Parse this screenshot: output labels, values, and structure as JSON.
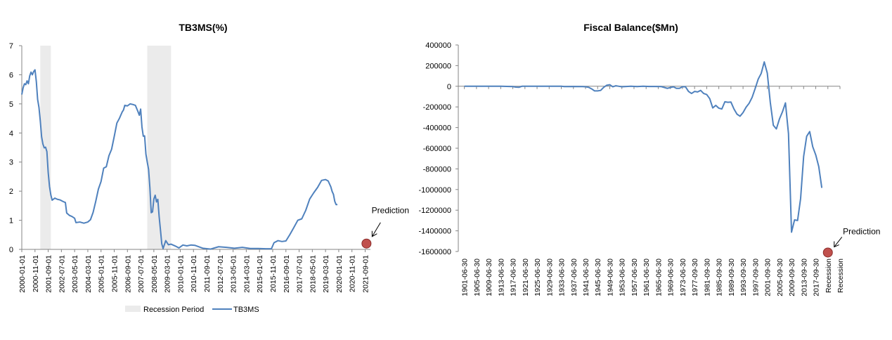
{
  "chart_data": [
    {
      "type": "line",
      "title": "TB3MS(%)",
      "xlabel": "",
      "ylabel": "",
      "ylim": [
        0,
        7
      ],
      "yticks": [
        0,
        1,
        2,
        3,
        4,
        5,
        6,
        7
      ],
      "x_tick_labels": [
        "2000-01-01",
        "2000-11-01",
        "2001-09-01",
        "2002-07-01",
        "2003-05-01",
        "2004-03-01",
        "2005-01-01",
        "2005-11-01",
        "2006-09-01",
        "2007-07-01",
        "2008-05-01",
        "2009-03-01",
        "2010-01-01",
        "2010-11-01",
        "2011-09-01",
        "2012-07-01",
        "2013-05-01",
        "2014-03-01",
        "2015-01-01",
        "2015-11-01",
        "2016-09-01",
        "2017-07-01",
        "2018-05-01",
        "2019-03-01",
        "2020-01-01",
        "2020-11-01",
        "2021-09-01"
      ],
      "legend": {
        "placement": "bottom",
        "entries": [
          "Recession Period",
          "TB3MS"
        ]
      },
      "recession_periods": [
        {
          "start": "2001-03-01",
          "end": "2001-11-01"
        },
        {
          "start": "2007-12-01",
          "end": "2009-06-01"
        }
      ],
      "series": [
        {
          "name": "TB3MS",
          "color": "#4F81BD",
          "x": [
            "2000-01-01",
            "2000-02-01",
            "2000-03-01",
            "2000-04-01",
            "2000-05-01",
            "2000-06-01",
            "2000-07-01",
            "2000-08-01",
            "2000-09-01",
            "2000-10-01",
            "2000-11-01",
            "2000-12-01",
            "2001-01-01",
            "2001-02-01",
            "2001-03-01",
            "2001-04-01",
            "2001-05-01",
            "2001-06-01",
            "2001-07-01",
            "2001-08-01",
            "2001-09-01",
            "2001-10-01",
            "2001-11-01",
            "2001-12-01",
            "2002-02-01",
            "2002-04-01",
            "2002-06-01",
            "2002-08-01",
            "2002-10-01",
            "2002-11-01",
            "2003-01-01",
            "2003-03-01",
            "2003-05-01",
            "2003-06-01",
            "2003-09-01",
            "2003-12-01",
            "2004-03-01",
            "2004-05-01",
            "2004-07-01",
            "2004-09-01",
            "2004-11-01",
            "2005-01-01",
            "2005-03-01",
            "2005-05-01",
            "2005-07-01",
            "2005-09-01",
            "2005-11-01",
            "2006-01-01",
            "2006-03-01",
            "2006-05-01",
            "2006-06-01",
            "2006-07-01",
            "2006-09-01",
            "2006-11-01",
            "2007-01-01",
            "2007-03-01",
            "2007-05-01",
            "2007-06-01",
            "2007-07-01",
            "2007-08-01",
            "2007-09-01",
            "2007-10-01",
            "2007-11-01",
            "2007-12-01",
            "2008-01-01",
            "2008-02-01",
            "2008-03-01",
            "2008-04-01",
            "2008-05-01",
            "2008-06-01",
            "2008-07-01",
            "2008-08-01",
            "2008-09-01",
            "2008-10-01",
            "2008-11-01",
            "2008-12-01",
            "2009-02-01",
            "2009-04-01",
            "2009-06-01",
            "2009-09-01",
            "2009-12-01",
            "2010-03-01",
            "2010-06-01",
            "2010-09-01",
            "2010-12-01",
            "2011-06-01",
            "2011-12-01",
            "2012-06-01",
            "2012-12-01",
            "2013-06-01",
            "2013-12-01",
            "2014-06-01",
            "2014-12-01",
            "2015-06-01",
            "2015-10-01",
            "2015-12-01",
            "2016-03-01",
            "2016-06-01",
            "2016-09-01",
            "2016-12-01",
            "2017-03-01",
            "2017-06-01",
            "2017-09-01",
            "2017-12-01",
            "2018-03-01",
            "2018-06-01",
            "2018-09-01",
            "2018-12-01",
            "2019-03-01",
            "2019-05-01",
            "2019-07-01",
            "2019-08-01",
            "2019-09-01",
            "2019-10-01",
            "2019-11-01",
            "2019-12-01"
          ],
          "values": [
            5.32,
            5.55,
            5.69,
            5.66,
            5.79,
            5.69,
            5.96,
            6.09,
            6.0,
            6.11,
            6.17,
            5.77,
            5.15,
            4.88,
            4.42,
            3.87,
            3.62,
            3.49,
            3.51,
            3.36,
            2.64,
            2.16,
            1.87,
            1.69,
            1.76,
            1.72,
            1.7,
            1.65,
            1.61,
            1.25,
            1.17,
            1.13,
            1.07,
            0.92,
            0.94,
            0.9,
            0.94,
            1.02,
            1.27,
            1.65,
            2.07,
            2.33,
            2.79,
            2.84,
            3.22,
            3.44,
            3.88,
            4.34,
            4.51,
            4.72,
            4.79,
            4.95,
            4.93,
            5.0,
            4.98,
            4.95,
            4.73,
            4.61,
            4.82,
            4.2,
            3.89,
            3.9,
            3.27,
            3.0,
            2.75,
            2.12,
            1.26,
            1.29,
            1.73,
            1.86,
            1.63,
            1.72,
            1.13,
            0.67,
            0.19,
            0.03,
            0.3,
            0.16,
            0.18,
            0.12,
            0.05,
            0.15,
            0.12,
            0.15,
            0.14,
            0.04,
            0.01,
            0.09,
            0.07,
            0.04,
            0.07,
            0.03,
            0.03,
            0.02,
            0.02,
            0.23,
            0.3,
            0.27,
            0.29,
            0.51,
            0.75,
            1.0,
            1.05,
            1.34,
            1.73,
            1.94,
            2.13,
            2.37,
            2.4,
            2.35,
            2.15,
            1.99,
            1.89,
            1.65,
            1.54,
            1.54
          ]
        }
      ],
      "prediction": {
        "label": "Prediction",
        "x": "2021-10-01",
        "y": 0.2,
        "marker_color": "#C0504D"
      }
    },
    {
      "type": "line",
      "title": "Fiscal Balance($Mn)",
      "xlabel": "",
      "ylabel": "",
      "ylim": [
        -1600000,
        400000
      ],
      "yticks": [
        400000,
        200000,
        0,
        -200000,
        -400000,
        -600000,
        -800000,
        -1000000,
        -1200000,
        -1400000,
        -1600000
      ],
      "x_tick_labels": [
        "1901-06-30",
        "1905-06-30",
        "1909-06-30",
        "1913-06-30",
        "1917-06-30",
        "1921-06-30",
        "1925-06-30",
        "1929-06-30",
        "1933-06-30",
        "1937-06-30",
        "1941-06-30",
        "1945-06-30",
        "1949-06-30",
        "1953-06-30",
        "1957-06-30",
        "1961-06-30",
        "1965-06-30",
        "1969-06-30",
        "1973-06-30",
        "1977-09-30",
        "1981-09-30",
        "1985-09-30",
        "1989-09-30",
        "1993-09-30",
        "1997-09-30",
        "2001-09-30",
        "2005-09-30",
        "2009-09-30",
        "2013-09-30",
        "2017-09-30",
        "Recession",
        "Recession"
      ],
      "series": [
        {
          "name": "Fiscal Balance",
          "color": "#4F81BD",
          "x": [
            1901,
            1905,
            1909,
            1913,
            1917,
            1918,
            1919,
            1920,
            1921,
            1925,
            1929,
            1933,
            1934,
            1937,
            1940,
            1941,
            1942,
            1943,
            1944,
            1945,
            1946,
            1947,
            1948,
            1949,
            1950,
            1951,
            1952,
            1953,
            1954,
            1956,
            1958,
            1960,
            1962,
            1964,
            1966,
            1968,
            1970,
            1971,
            1972,
            1973,
            1974,
            1975,
            1976,
            1977,
            1978,
            1979,
            1980,
            1981,
            1982,
            1983,
            1984,
            1985,
            1986,
            1987,
            1988,
            1989,
            1990,
            1991,
            1992,
            1993,
            1994,
            1995,
            1996,
            1997,
            1998,
            1999,
            2000,
            2001,
            2002,
            2003,
            2004,
            2005,
            2006,
            2007,
            2008,
            2009,
            2010,
            2011,
            2012,
            2013,
            2014,
            2015,
            2016,
            2017,
            2018,
            2019
          ],
          "values": [
            0,
            0,
            0,
            0,
            -3000,
            -8000,
            -10000,
            0,
            0,
            0,
            0,
            0,
            -3000,
            -2000,
            -3000,
            -5000,
            -10000,
            -25000,
            -45000,
            -45000,
            -40000,
            -10000,
            10000,
            15000,
            -5000,
            5000,
            0,
            -5000,
            -3000,
            0,
            -3000,
            0,
            -2000,
            -2000,
            -3000,
            -20000,
            -5000,
            -20000,
            -20000,
            -5000,
            -5000,
            -50000,
            -70000,
            -50000,
            -55000,
            -40000,
            -70000,
            -80000,
            -120000,
            -210000,
            -185000,
            -212000,
            -220000,
            -150000,
            -155000,
            -153000,
            -220000,
            -270000,
            -290000,
            -255000,
            -203000,
            -165000,
            -107000,
            -22000,
            69000,
            125000,
            236000,
            128000,
            -158000,
            -378000,
            -413000,
            -318000,
            -248000,
            -161000,
            -459000,
            -1413000,
            -1294000,
            -1300000,
            -1087000,
            -680000,
            -485000,
            -439000,
            -585000,
            -665000,
            -779000,
            -984000
          ]
        }
      ],
      "prediction": {
        "label": "Prediction",
        "x": "Recession",
        "y": -1610000,
        "marker_color": "#C0504D"
      }
    }
  ]
}
